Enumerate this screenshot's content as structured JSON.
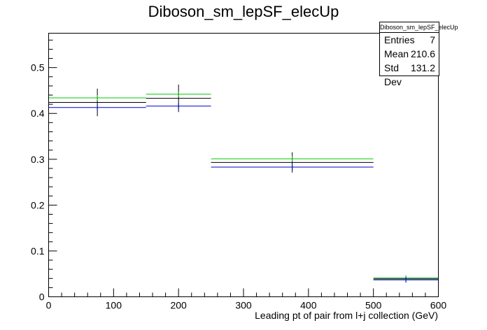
{
  "chart_data": {
    "type": "histogram",
    "title": "Diboson_sm_lepSF_elecUp",
    "xlabel": "Leading pt of pair from l+j collection (GeV)",
    "ylabel": "",
    "xlim": [
      0,
      600
    ],
    "ylim": [
      0,
      0.575
    ],
    "xticks": [
      0,
      100,
      200,
      300,
      400,
      500,
      600
    ],
    "yticks": [
      0,
      0.1,
      0.2,
      0.3,
      0.4,
      0.5
    ],
    "bin_edges": [
      0,
      150,
      250,
      500,
      600
    ],
    "series": [
      {
        "color": "#00cc00",
        "values": [
          0.434,
          0.442,
          0.301,
          0.041
        ],
        "errors": [
          0.0,
          0.0,
          0.0,
          0.0
        ]
      },
      {
        "color": "#000000",
        "values": [
          0.424,
          0.433,
          0.293,
          0.039
        ],
        "errors": [
          0.03,
          0.03,
          0.022,
          0.006
        ]
      },
      {
        "color": "#0000cc",
        "values": [
          0.413,
          0.416,
          0.283,
          0.037
        ],
        "errors": [
          0.0,
          0.0,
          0.0,
          0.0
        ]
      }
    ],
    "grid": false,
    "stats": {
      "name": "Diboson_sm_lepSF_elecUp",
      "rows": [
        {
          "label": "Entries",
          "value": "7"
        },
        {
          "label": "Mean",
          "value": "210.6"
        },
        {
          "label": "Std Dev",
          "value": "131.2"
        }
      ]
    }
  }
}
